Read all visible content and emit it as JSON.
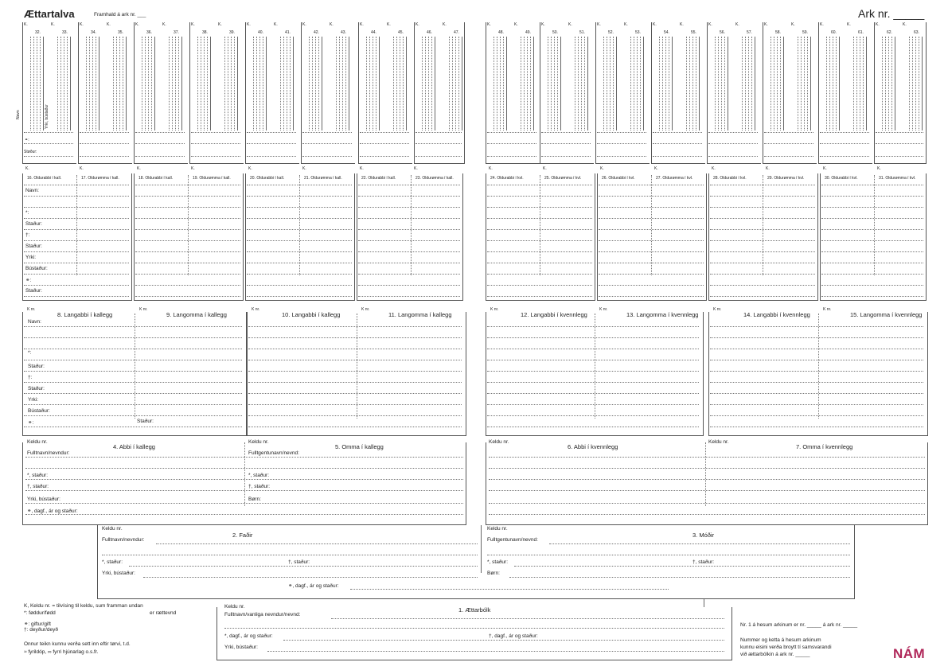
{
  "header": {
    "title": "Ættartalva",
    "continued": "Framhald á ark nr. ___",
    "sheet_label": "Ark nr. _____"
  },
  "top_cols": {
    "k": "K.",
    "numbers": [
      [
        "32.",
        "33."
      ],
      [
        "34.",
        "35."
      ],
      [
        "36.",
        "37."
      ],
      [
        "38.",
        "39."
      ],
      [
        "40.",
        "41."
      ],
      [
        "42.",
        "43."
      ],
      [
        "44.",
        "45."
      ],
      [
        "46.",
        "47."
      ],
      [
        "48.",
        "49."
      ],
      [
        "50.",
        "51."
      ],
      [
        "52.",
        "53."
      ],
      [
        "54.",
        "55."
      ],
      [
        "56.",
        "57."
      ],
      [
        "58.",
        "59."
      ],
      [
        "60.",
        "61."
      ],
      [
        "62.",
        "63."
      ]
    ],
    "vert_labels": [
      "Navn",
      "*",
      "†",
      "Yrki, bústaður"
    ],
    "marriage": "⚭:",
    "status": "Støður:"
  },
  "gen5": {
    "k": "K.",
    "cells": [
      "16. Oldurabbi í kall.",
      "17. Oldurømma í kall.",
      "18. Oldurabbi í kall.",
      "19. Oldurømma í kall.",
      "20. Oldurabbi í kall.",
      "21. Oldurømma í kall.",
      "22. Oldurabbi í kall.",
      "23. Oldurømma í kall.",
      "24. Oldurabbi í kvl.",
      "25. Oldurømma í kvl.",
      "26. Oldurabbi í kvl.",
      "27. Oldurømma í kvl.",
      "28. Oldurabbi í kvl.",
      "29. Oldurømma í kvl.",
      "30. Oldurabbi í kvl.",
      "31. Oldurømma í kvl."
    ],
    "rows": [
      "Navn:",
      "*:",
      "Staður:",
      "†:",
      "Staður:",
      "Yrki:",
      "Bústaður:",
      "⚭:",
      "Staður:"
    ]
  },
  "gen4": {
    "knr": "K nr.",
    "cells": [
      "8. Langabbi í kallegg",
      "9. Langomma í kallegg",
      "10. Langabbi í kallegg",
      "11. Langomma í kallegg",
      "12. Langabbi í kvennlegg",
      "13. Langomma í kvennlegg",
      "14. Langabbi í kvennlegg",
      "15. Langomma í kvennlegg"
    ],
    "rows": [
      "Navn:",
      "*:",
      "Staður:",
      "†:",
      "Staður:",
      "Yrki:",
      "Bústaður:",
      "⚭:"
    ],
    "extra": "Staður:"
  },
  "gen3": {
    "keldu": "Keldu nr.",
    "cells": [
      "4. Abbi í kallegg",
      "5. Omma í kallegg",
      "6. Abbi í kvennlegg",
      "7. Omma í kvennlegg"
    ],
    "rows_left": [
      "Fulltnavn/nevndur:",
      "*, staður:",
      "†, staður:",
      "Yrki, bústaður:",
      "⚭, dagf., ár og staður:"
    ],
    "rows_right": [
      "Fulltgentunavn/nevnd:",
      "*, staður:",
      "†, staður:",
      "Børn:"
    ]
  },
  "gen2": {
    "keldu": "Keldu nr.",
    "father": "2. Faðir",
    "mother": "3. Móðir",
    "father_rows": [
      "Fulltnavn/nevndur:",
      "*, staður:",
      "†, staður:",
      "Yrki, bústaður:"
    ],
    "mother_rows": [
      "Fulltgentunavn/nevnd:",
      "*, staður:",
      "†, staður:",
      "Børn:"
    ],
    "marriage": "⚭, dagf., ár og staður:"
  },
  "gen1": {
    "keldu": "Keldu nr.",
    "title": "1. Ættarbólk",
    "rows": [
      "Fulltnavn/vanliga nevndur/nevnd:",
      "*, dagf., ár og staður:",
      "†, dagf., ár og staður:",
      "Yrki, bústaður:"
    ]
  },
  "legend": {
    "lines": [
      "K, Keldu nr. = tilvísing til keldu, sum framman undan",
      "*: føddur/fødd",
      "er rættevnd",
      "⚭: giftur/gift",
      "†: deyður/deyð",
      "Onnur teikn kunnu verða sett inn eftir tørvi, t.d.",
      "≈ fyrildóp, ∞ fyrri hjúnarlag o.s.fr."
    ]
  },
  "footer": {
    "ref": "Nr. 1 á hesum arkinum er nr. _____ á ark nr. _____",
    "note1": "Nummer og ketta á hesum arkinum",
    "note2": "kunnu eisini verða broytt tí samsvarandi",
    "note3": "við ættarbólkin á ark nr. _____",
    "logo": "NÁM"
  },
  "colors": {
    "line": "#555555",
    "logo": "#b0285a"
  }
}
